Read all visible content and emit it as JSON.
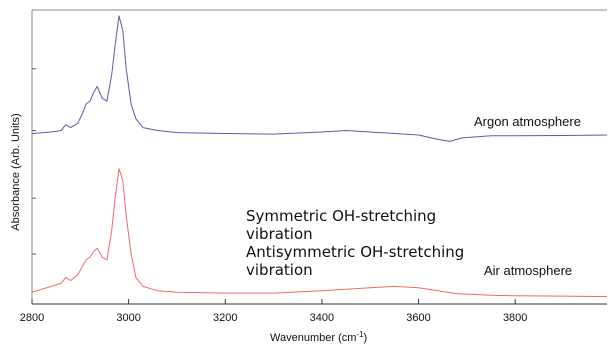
{
  "chart_data": {
    "type": "line",
    "xlabel": "Wavenumber (cm",
    "xlabel_sup": "-1",
    "xlabel_suffix": ")",
    "ylabel": "Absorbance (Arb. Units)",
    "xlim": [
      2800,
      3990
    ],
    "ylim": [
      0,
      1
    ],
    "x_ticks": [
      2800,
      3000,
      3200,
      3400,
      3600,
      3800
    ],
    "x_tick_labels": [
      "2800",
      "3000",
      "3200",
      "3400",
      "3600",
      "3800"
    ],
    "y_ticks": [
      0.17,
      0.36,
      0.59,
      0.8
    ],
    "grid": false,
    "series": [
      {
        "name": "Argon atmosphere",
        "color": "#5a5aa8",
        "x": [
          2800,
          2840,
          2860,
          2870,
          2880,
          2895,
          2905,
          2912,
          2920,
          2928,
          2935,
          2945,
          2955,
          2965,
          2972,
          2980,
          2988,
          2995,
          3005,
          3015,
          3030,
          3060,
          3100,
          3200,
          3300,
          3400,
          3450,
          3500,
          3600,
          3640,
          3665,
          3690,
          3750,
          3800,
          3900,
          3990
        ],
        "y": [
          0.58,
          0.585,
          0.59,
          0.61,
          0.6,
          0.615,
          0.65,
          0.68,
          0.69,
          0.72,
          0.74,
          0.7,
          0.69,
          0.78,
          0.88,
          0.98,
          0.93,
          0.8,
          0.68,
          0.63,
          0.6,
          0.59,
          0.583,
          0.58,
          0.578,
          0.585,
          0.59,
          0.585,
          0.575,
          0.56,
          0.553,
          0.565,
          0.572,
          0.572,
          0.573,
          0.575
        ]
      },
      {
        "name": "Air atmosphere",
        "color": "#f06a6a",
        "x": [
          2800,
          2840,
          2860,
          2870,
          2880,
          2895,
          2905,
          2912,
          2920,
          2928,
          2935,
          2945,
          2955,
          2965,
          2972,
          2980,
          2988,
          2995,
          3005,
          3015,
          3030,
          3060,
          3100,
          3200,
          3300,
          3400,
          3450,
          3500,
          3550,
          3600,
          3640,
          3680,
          3750,
          3800,
          3900,
          3990
        ],
        "y": [
          0.04,
          0.06,
          0.07,
          0.09,
          0.08,
          0.1,
          0.13,
          0.15,
          0.16,
          0.18,
          0.19,
          0.16,
          0.15,
          0.25,
          0.36,
          0.46,
          0.42,
          0.3,
          0.17,
          0.09,
          0.06,
          0.045,
          0.04,
          0.037,
          0.037,
          0.045,
          0.05,
          0.055,
          0.06,
          0.055,
          0.045,
          0.035,
          0.03,
          0.028,
          0.027,
          0.025
        ]
      }
    ],
    "curve_labels": [
      "Argon atmosphere",
      "Air atmosphere"
    ],
    "annotations": [
      "Symmetric OH-stretching",
      "vibration",
      "Antisymmetric OH-stretching",
      "vibration"
    ]
  }
}
